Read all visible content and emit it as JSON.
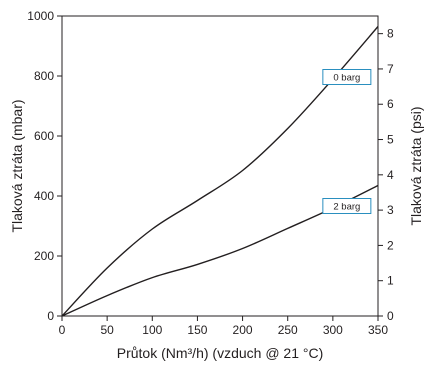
{
  "chart_data": {
    "type": "line",
    "xlabel": "Průtok (Nm³/h) (vzduch @ 21 °C)",
    "ylabel": "Tlaková ztráta (mbar)",
    "y2label": "Tlaková ztráta  (psi)",
    "xlim": [
      0,
      350
    ],
    "ylim": [
      0,
      1000
    ],
    "y2lim": [
      0,
      8.5
    ],
    "x_ticks": [
      "0",
      "50",
      "100",
      "150",
      "200",
      "250",
      "300",
      "350"
    ],
    "y_ticks": [
      "0",
      "200",
      "400",
      "600",
      "800",
      "1000"
    ],
    "y2_ticks": [
      "0",
      "1",
      "2",
      "3",
      "4",
      "5",
      "6",
      "7",
      "8"
    ],
    "grid": false,
    "legend": "callouts",
    "series": [
      {
        "name": "0 barg",
        "color": "#231f20",
        "x": [
          0,
          50,
          100,
          150,
          200,
          250,
          300,
          350
        ],
        "y": [
          0,
          160,
          290,
          385,
          485,
          625,
          790,
          965
        ]
      },
      {
        "name": "2 barg",
        "color": "#231f20",
        "x": [
          0,
          50,
          100,
          150,
          200,
          250,
          300,
          350
        ],
        "y": [
          0,
          68,
          128,
          172,
          225,
          292,
          360,
          435
        ]
      }
    ]
  }
}
